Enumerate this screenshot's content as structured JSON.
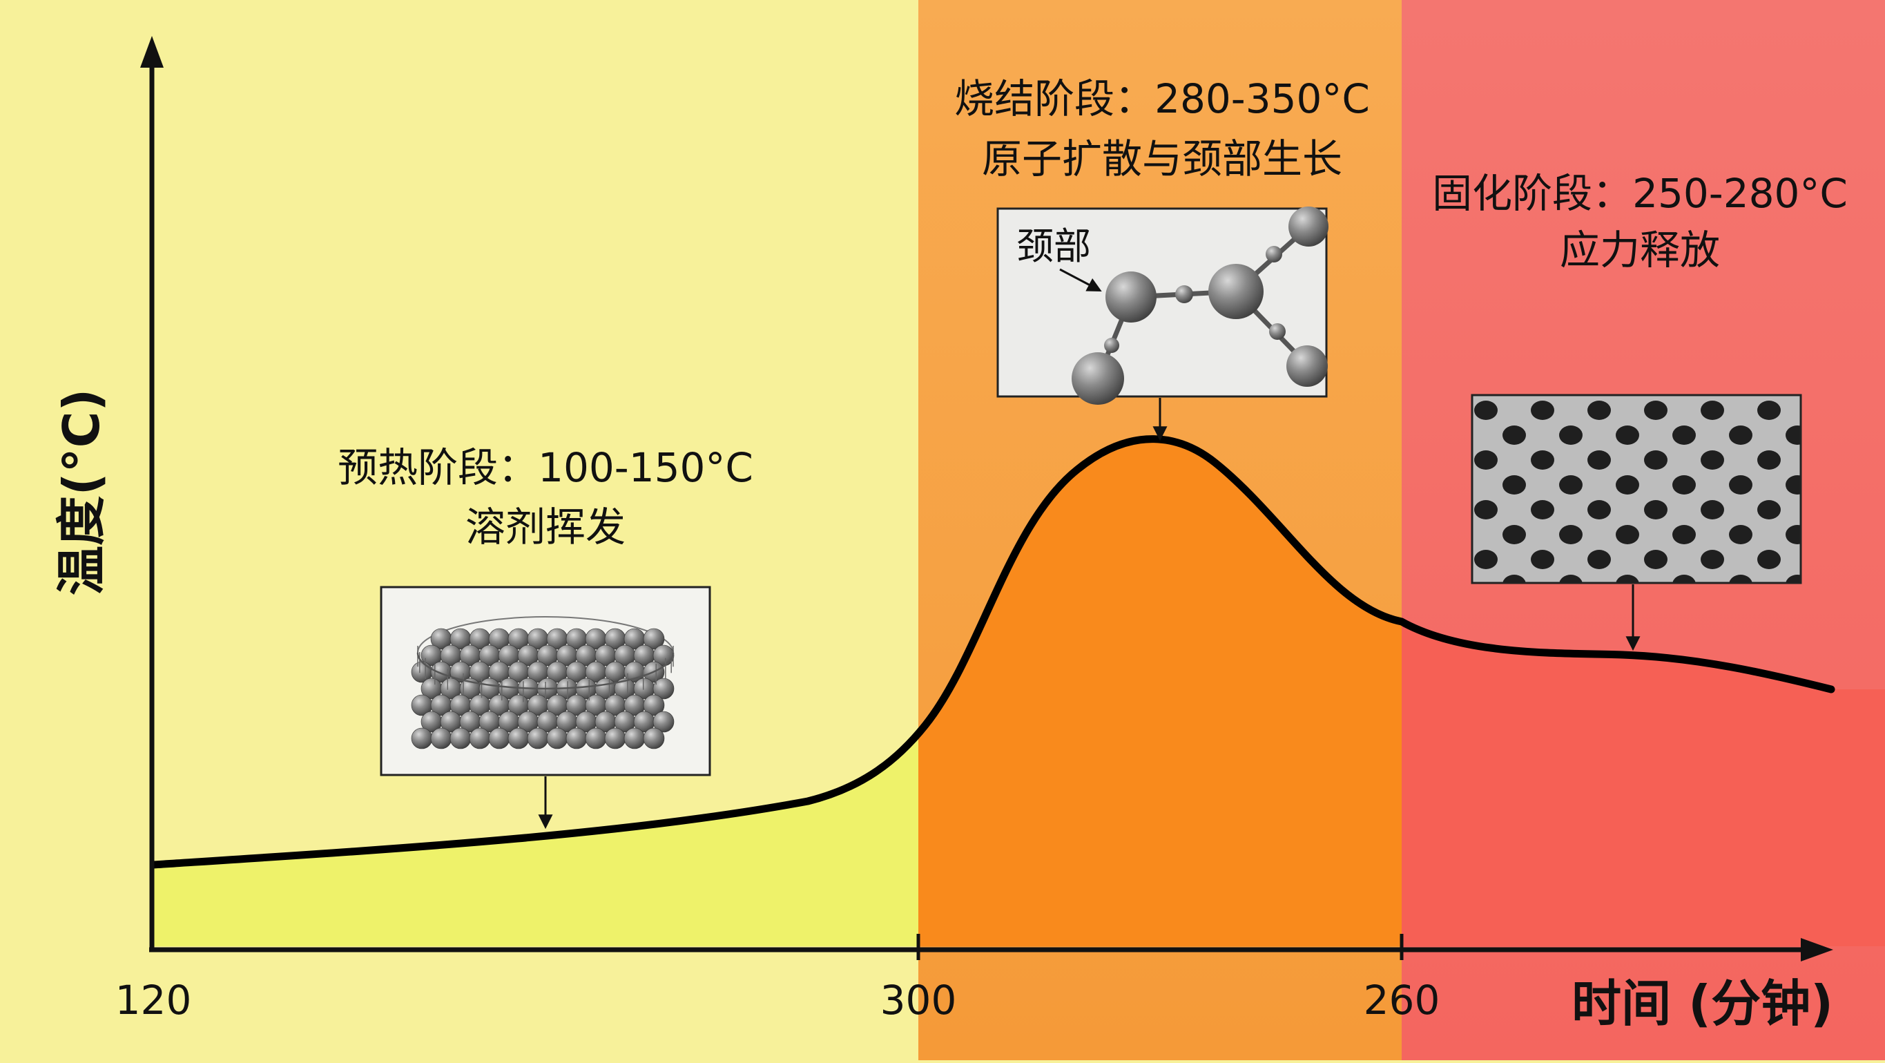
{
  "axes": {
    "y_title_text": "温度",
    "y_title_unit": "(°C)",
    "x_title": "时间 (分钟)",
    "x_ticks": [
      "120",
      "300",
      "260"
    ]
  },
  "stages": [
    {
      "name": "预热阶段：100-150°C",
      "desc": "溶剂挥发",
      "color": "#f7f19a"
    },
    {
      "name": "烧结阶段：280-350°C",
      "desc": "原子扩散与颈部生长",
      "color": "#f7a23a"
    },
    {
      "name": "固化阶段：250-280°C",
      "desc": "应力释放",
      "color": "#f46a64"
    }
  ],
  "insets": {
    "neck_label": "颈部"
  },
  "colors": {
    "preheat_fill": "#eef26a",
    "sinter_fill": "#f98a1c",
    "cure_fill": "#f66055",
    "curve": "#000000"
  }
}
